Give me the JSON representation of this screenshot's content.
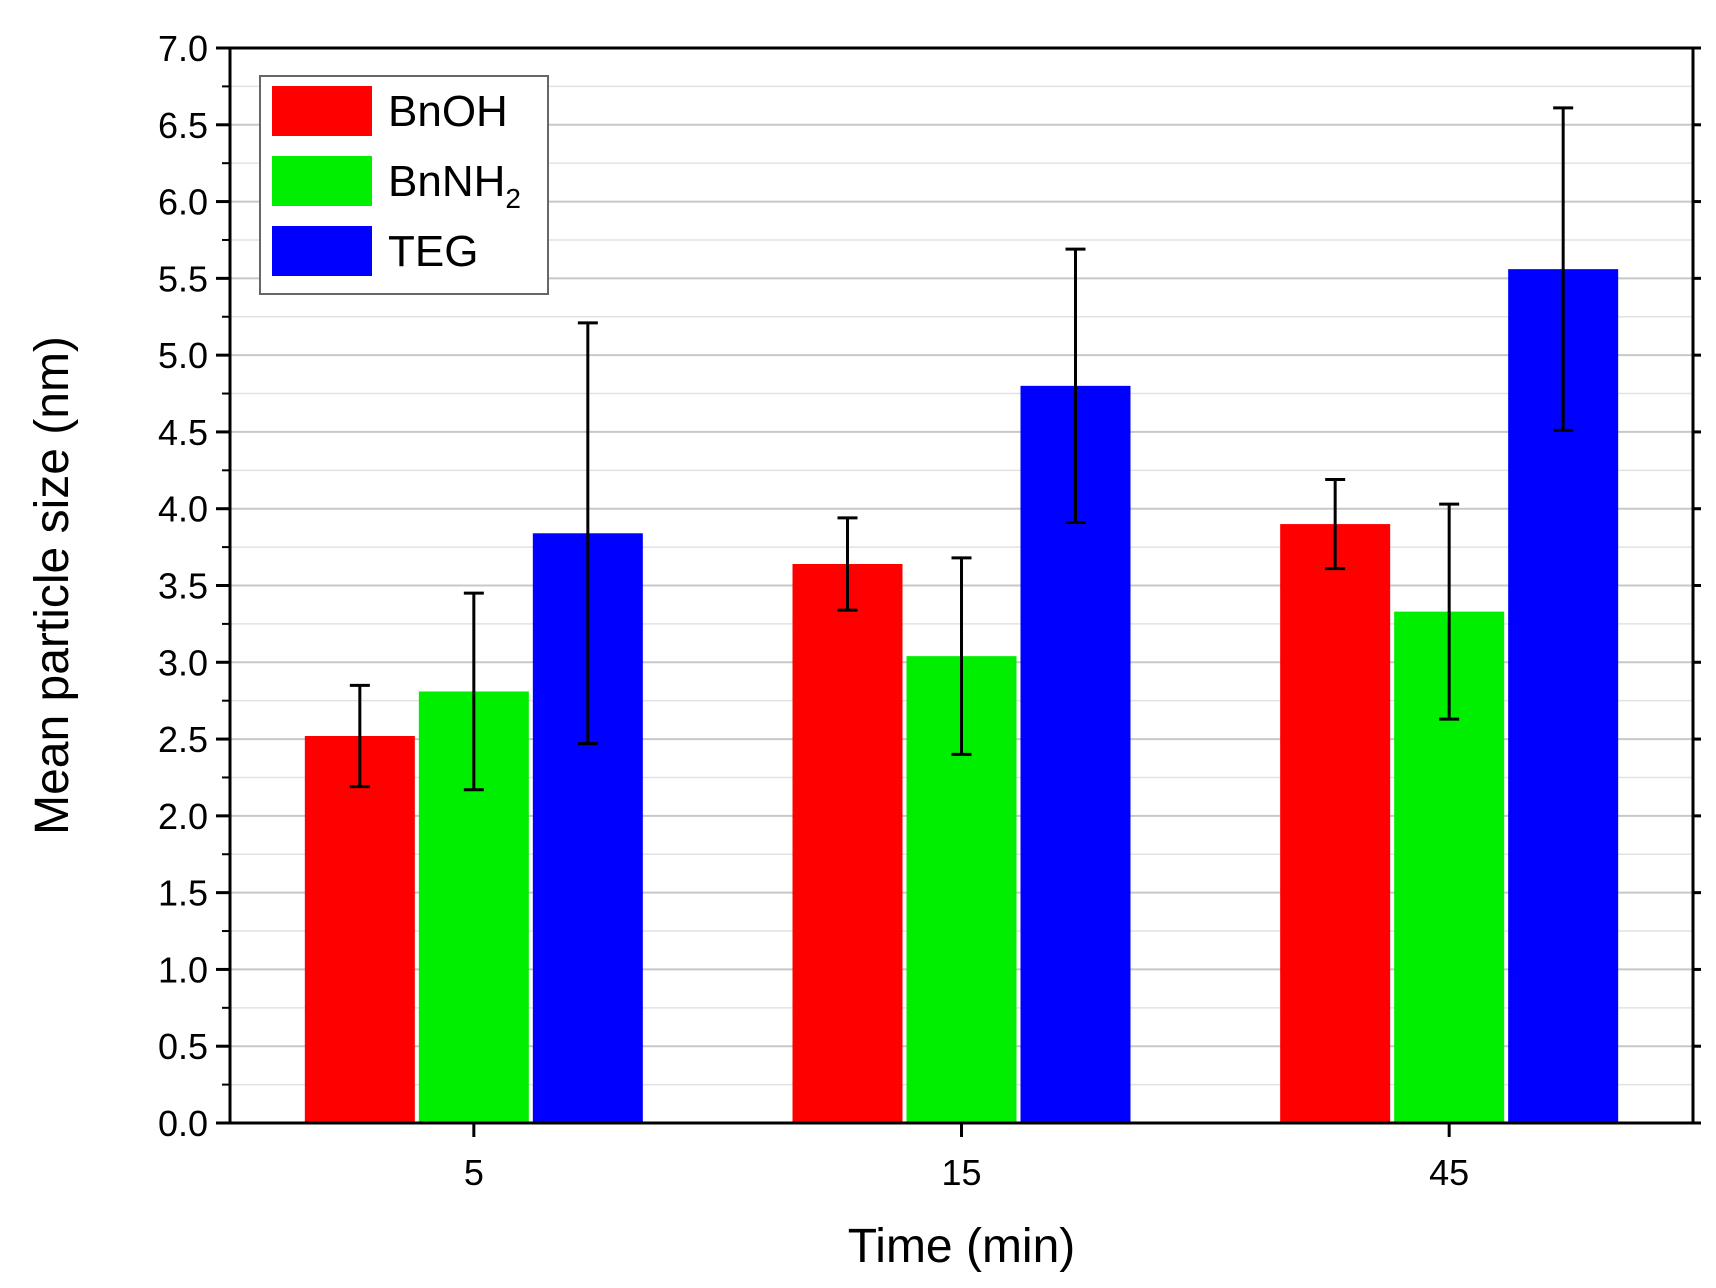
{
  "chart_data": {
    "type": "bar",
    "title": "",
    "xlabel": "Time (min)",
    "ylabel": "Mean particle size (nm)",
    "categories": [
      "5",
      "15",
      "45"
    ],
    "ylim": [
      0,
      7.0
    ],
    "yticks": [
      "0.0",
      "0.5",
      "1.0",
      "1.5",
      "2.0",
      "2.5",
      "3.0",
      "3.5",
      "4.0",
      "4.5",
      "5.0",
      "5.5",
      "6.0",
      "6.5",
      "7.0"
    ],
    "grid": true,
    "legend_position": "top-left",
    "series": [
      {
        "name": "BnOH",
        "color": "#ff0000",
        "values": [
          2.52,
          3.64,
          3.9
        ],
        "errors": [
          0.33,
          0.3,
          0.29
        ]
      },
      {
        "name": "BnNH",
        "name_subscript": "2",
        "color": "#00ee00",
        "values": [
          2.81,
          3.04,
          3.33
        ],
        "errors": [
          0.64,
          0.64,
          0.7
        ]
      },
      {
        "name": "TEG",
        "color": "#0000ff",
        "values": [
          3.84,
          4.8,
          5.56
        ],
        "errors": [
          1.37,
          0.89,
          1.05
        ]
      }
    ]
  }
}
